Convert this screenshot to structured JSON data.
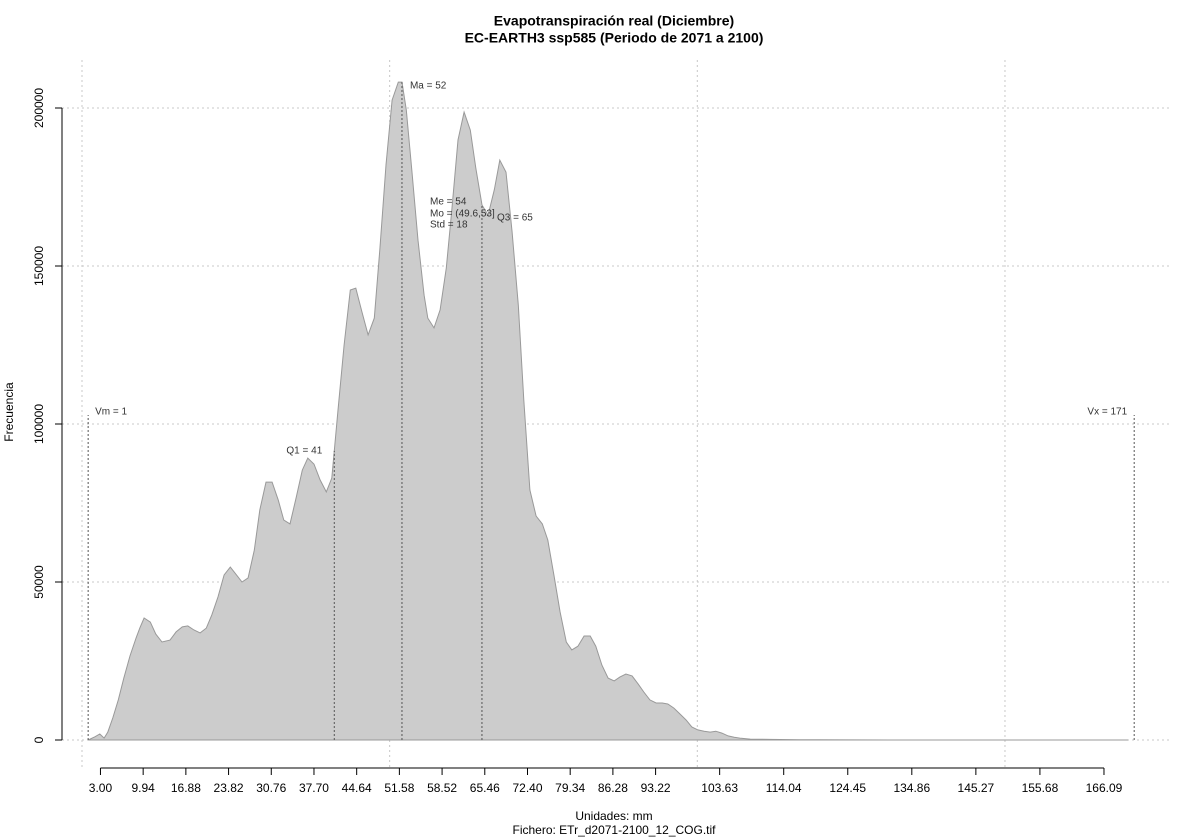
{
  "chart_data": {
    "type": "area",
    "title": "Evapotranspiración real (Diciembre)",
    "subtitle": "EC-EARTH3 ssp585 (Periodo de 2071 a 2100)",
    "x_label": "Unidades: mm",
    "caption": "Fichero: ETr_d2071-2100_12_COG.tif",
    "y_label": "Frecuencia",
    "color": "#cccccc",
    "line_color": "#999999",
    "grid": true,
    "x": [
      1.0,
      2.1,
      2.9,
      3.6,
      4.2,
      5.0,
      5.9,
      6.8,
      7.8,
      8.8,
      9.4,
      10.1,
      11.1,
      12.0,
      13.0,
      14.3,
      15.3,
      16.3,
      17.2,
      18.2,
      19.2,
      20.2,
      21.1,
      22.1,
      23.1,
      24.1,
      25.0,
      26.0,
      27.0,
      28.0,
      28.9,
      29.9,
      30.9,
      31.9,
      32.8,
      33.8,
      34.8,
      35.8,
      36.7,
      37.7,
      38.7,
      39.7,
      40.6,
      41.6,
      42.6,
      43.6,
      44.5,
      45.5,
      46.5,
      47.5,
      48.4,
      49.4,
      50.4,
      51.4,
      52.0,
      52.7,
      53.6,
      54.6,
      55.6,
      56.2,
      57.2,
      58.2,
      59.2,
      60.1,
      61.1,
      62.1,
      63.1,
      64.0,
      65.0,
      66.0,
      67.0,
      67.9,
      68.9,
      69.9,
      70.9,
      71.8,
      72.8,
      73.8,
      74.8,
      75.7,
      76.7,
      77.7,
      78.7,
      79.6,
      80.6,
      81.6,
      82.6,
      83.5,
      84.5,
      85.5,
      86.5,
      87.4,
      88.4,
      89.4,
      90.4,
      91.3,
      92.3,
      93.3,
      94.3,
      95.2,
      96.2,
      97.2,
      98.2,
      99.1,
      100.1,
      101.1,
      102.1,
      103.0,
      104.0,
      105.0,
      106.0,
      106.9,
      108.6,
      111.8,
      116.7,
      119.9,
      132.9,
      149.2,
      170.0
    ],
    "values": [
      0,
      1000,
      1900,
      600,
      2500,
      7000,
      12700,
      19600,
      26600,
      32300,
      35400,
      38600,
      37300,
      33500,
      31000,
      31600,
      34200,
      35800,
      36100,
      34800,
      33900,
      35400,
      39600,
      45300,
      52200,
      54700,
      52500,
      50000,
      51300,
      60100,
      72800,
      81600,
      81600,
      75900,
      69600,
      68400,
      76600,
      85400,
      89200,
      87300,
      82300,
      78500,
      82900,
      104400,
      125000,
      142400,
      143000,
      135400,
      128200,
      133500,
      155100,
      182000,
      202500,
      208200,
      208200,
      199400,
      180400,
      158200,
      140800,
      133500,
      130400,
      136100,
      149400,
      167700,
      189900,
      198700,
      193000,
      181000,
      169300,
      166100,
      174100,
      183500,
      179700,
      160800,
      137700,
      107600,
      79100,
      70900,
      68400,
      63300,
      52200,
      40500,
      31000,
      28500,
      29700,
      32900,
      32900,
      29700,
      23700,
      19600,
      18700,
      19900,
      20900,
      20300,
      17700,
      15200,
      12700,
      11700,
      11700,
      11400,
      10100,
      8200,
      6300,
      4100,
      3200,
      2800,
      2500,
      2800,
      2200,
      1300,
      900,
      600,
      300,
      200,
      100,
      50,
      0,
      0,
      0
    ],
    "xlim": [
      -3.25,
      176.82
    ],
    "ylim": [
      -8860,
      215190
    ],
    "xticks": [
      {
        "value": 3.0,
        "label": "3.00"
      },
      {
        "value": 9.94,
        "label": "9.94"
      },
      {
        "value": 16.88,
        "label": "16.88"
      },
      {
        "value": 23.82,
        "label": "23.82"
      },
      {
        "value": 30.76,
        "label": "30.76"
      },
      {
        "value": 37.7,
        "label": "37.70"
      },
      {
        "value": 44.64,
        "label": "44.64"
      },
      {
        "value": 51.58,
        "label": "51.58"
      },
      {
        "value": 58.52,
        "label": "58.52"
      },
      {
        "value": 65.46,
        "label": "65.46"
      },
      {
        "value": 72.4,
        "label": "72.40"
      },
      {
        "value": 79.34,
        "label": "79.34"
      },
      {
        "value": 86.28,
        "label": "86.28"
      },
      {
        "value": 93.22,
        "label": "93.22"
      },
      {
        "value": 103.63,
        "label": "103.63"
      },
      {
        "value": 114.04,
        "label": "114.04"
      },
      {
        "value": 124.45,
        "label": "124.45"
      },
      {
        "value": 134.86,
        "label": "134.86"
      },
      {
        "value": 145.27,
        "label": "145.27"
      },
      {
        "value": 155.68,
        "label": "155.68"
      },
      {
        "value": 166.09,
        "label": "166.09"
      }
    ],
    "xgrid": [
      0,
      50,
      100,
      150
    ],
    "yticks": [
      0,
      50000,
      100000,
      150000,
      200000
    ],
    "annotations": [
      {
        "text": "Vm = 1",
        "x": 1
      },
      {
        "text": "Vx = 171",
        "x": 171
      },
      {
        "text": "Q1 = 41",
        "x": 41
      },
      {
        "text": "Ma = 52",
        "x": 52
      },
      {
        "text": "Q3 = 65",
        "x": 65
      },
      {
        "text": "Me = 54"
      },
      {
        "text": "Mo = (49.6,53]"
      },
      {
        "text": "Std = 18"
      }
    ]
  }
}
